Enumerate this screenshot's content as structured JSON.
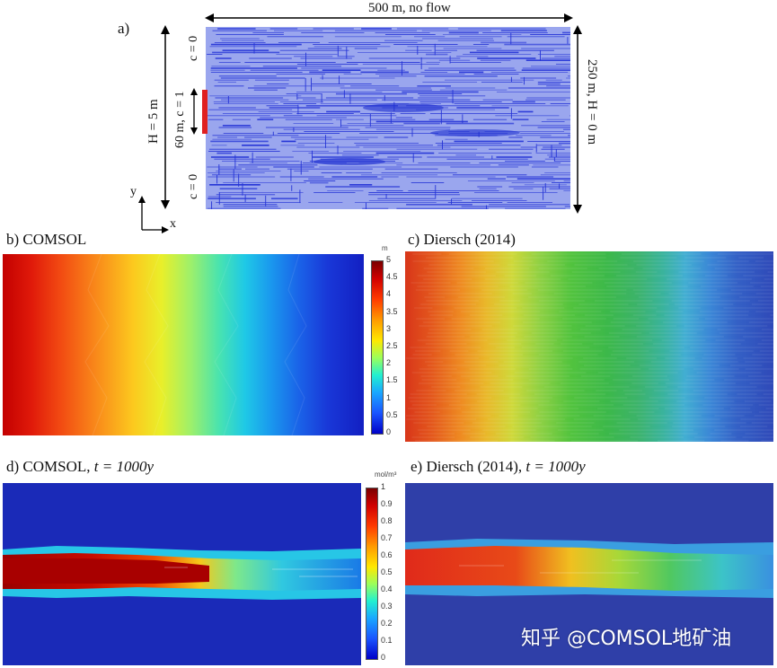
{
  "panels": {
    "a": {
      "label": "a)",
      "top_label": "500 m, no flow",
      "left_height": "H = 5 m",
      "left_inflow": "60 m, c = 1",
      "c_top": "c = 0",
      "c_bottom": "c = 0",
      "right_boundary": "250 m, H = 0 m",
      "axis_y": "y",
      "axis_x": "x",
      "colors": {
        "matrix": "#9aa6ee",
        "fractures": "#2433d6",
        "inflow": "#e02020"
      }
    },
    "b": {
      "label": "b) COMSOL"
    },
    "c": {
      "label": "c) Diersch (2014)"
    },
    "d": {
      "label_prefix": "d) COMSOL, ",
      "label_math": "t = 1000y"
    },
    "e": {
      "label_prefix": "e) Diersch (2014), ",
      "label_math": "t = 1000y"
    }
  },
  "colorbar_head": {
    "unit": "m",
    "ticks": [
      "5",
      "4.5",
      "4",
      "3.5",
      "3",
      "2.5",
      "2",
      "1.5",
      "1",
      "0.5",
      "0"
    ]
  },
  "colorbar_conc": {
    "unit": "mol/m³",
    "ticks": [
      "1",
      "0.9",
      "0.8",
      "0.7",
      "0.6",
      "0.5",
      "0.4",
      "0.3",
      "0.2",
      "0.1",
      "0"
    ]
  },
  "watermark": "知乎 @COMSOL地矿油"
}
